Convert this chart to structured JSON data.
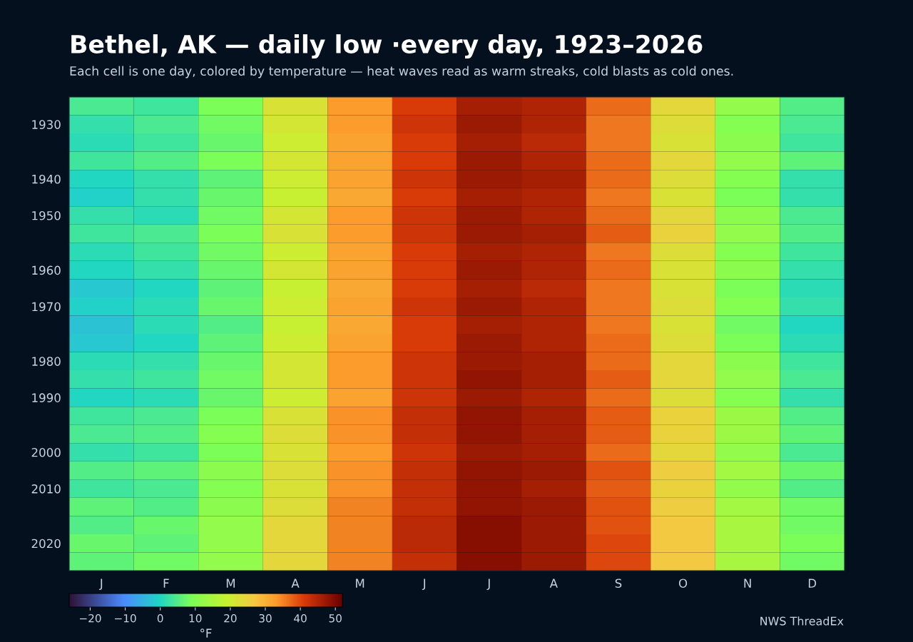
{
  "chart_data": {
    "type": "heatmap",
    "title": "Bethel, AK — daily low ·every day, 1923–2026",
    "subtitle": "Each cell is one day, colored by temperature — heat waves read as warm streaks, cold blasts as cold ones.",
    "categories": [
      "J",
      "F",
      "M",
      "A",
      "M",
      "J",
      "J",
      "A",
      "S",
      "O",
      "N",
      "D"
    ],
    "y_categories": [
      null,
      "1930",
      null,
      null,
      "1940",
      null,
      "1950",
      null,
      null,
      "1960",
      null,
      "1970",
      null,
      null,
      "1980",
      null,
      "1990",
      null,
      null,
      "2000",
      null,
      "2010",
      null,
      null,
      "2020",
      null
    ],
    "cells": [
      [
        4,
        3,
        9,
        22,
        33,
        41,
        46,
        45,
        37,
        24,
        12,
        5
      ],
      [
        2,
        4,
        8,
        21,
        33,
        42,
        47,
        45,
        36,
        23,
        10,
        4
      ],
      [
        1,
        3,
        7,
        20,
        32,
        41,
        46,
        44,
        36,
        22,
        11,
        3
      ],
      [
        3,
        5,
        9,
        21,
        32,
        41,
        47,
        45,
        37,
        24,
        12,
        6
      ],
      [
        0,
        2,
        6,
        20,
        32,
        42,
        47,
        46,
        37,
        23,
        10,
        2
      ],
      [
        -1,
        2,
        7,
        19,
        31,
        41,
        46,
        45,
        36,
        22,
        9,
        2
      ],
      [
        2,
        1,
        8,
        21,
        33,
        42,
        47,
        45,
        37,
        24,
        11,
        4
      ],
      [
        3,
        4,
        9,
        22,
        33,
        42,
        47,
        46,
        38,
        25,
        12,
        5
      ],
      [
        1,
        3,
        8,
        20,
        32,
        41,
        46,
        45,
        36,
        23,
        10,
        3
      ],
      [
        0,
        2,
        7,
        21,
        32,
        41,
        47,
        45,
        37,
        22,
        11,
        2
      ],
      [
        -2,
        0,
        6,
        19,
        31,
        41,
        46,
        44,
        36,
        22,
        9,
        1
      ],
      [
        -1,
        1,
        7,
        20,
        32,
        42,
        47,
        45,
        36,
        23,
        10,
        2
      ],
      [
        -3,
        1,
        5,
        19,
        31,
        41,
        46,
        45,
        36,
        22,
        8,
        0
      ],
      [
        -2,
        0,
        6,
        20,
        32,
        41,
        47,
        45,
        37,
        23,
        9,
        1
      ],
      [
        1,
        2,
        7,
        21,
        33,
        42,
        47,
        46,
        37,
        24,
        11,
        3
      ],
      [
        2,
        3,
        8,
        21,
        33,
        42,
        48,
        46,
        38,
        24,
        12,
        4
      ],
      [
        0,
        1,
        7,
        20,
        32,
        42,
        47,
        45,
        37,
        23,
        10,
        2
      ],
      [
        3,
        4,
        9,
        22,
        34,
        43,
        48,
        46,
        38,
        25,
        13,
        5
      ],
      [
        4,
        5,
        10,
        23,
        34,
        43,
        48,
        46,
        38,
        25,
        13,
        6
      ],
      [
        2,
        3,
        9,
        22,
        33,
        42,
        47,
        46,
        37,
        24,
        12,
        4
      ],
      [
        5,
        6,
        11,
        23,
        34,
        43,
        48,
        47,
        39,
        26,
        14,
        7
      ],
      [
        3,
        4,
        10,
        22,
        34,
        43,
        48,
        46,
        38,
        25,
        12,
        5
      ],
      [
        6,
        5,
        11,
        23,
        35,
        43,
        48,
        47,
        39,
        26,
        14,
        8
      ],
      [
        5,
        7,
        12,
        24,
        35,
        44,
        49,
        47,
        39,
        27,
        15,
        8
      ],
      [
        7,
        6,
        12,
        24,
        35,
        44,
        49,
        47,
        40,
        27,
        15,
        9
      ],
      [
        6,
        8,
        12,
        24,
        35,
        43,
        49,
        47,
        40,
        27,
        15,
        8
      ]
    ],
    "clim": [
      -26,
      52
    ],
    "cticks": [
      -20,
      -10,
      0,
      10,
      20,
      30,
      40,
      50
    ],
    "clabel": "°F",
    "annotations": [
      "NWS ThreadEx"
    ]
  }
}
